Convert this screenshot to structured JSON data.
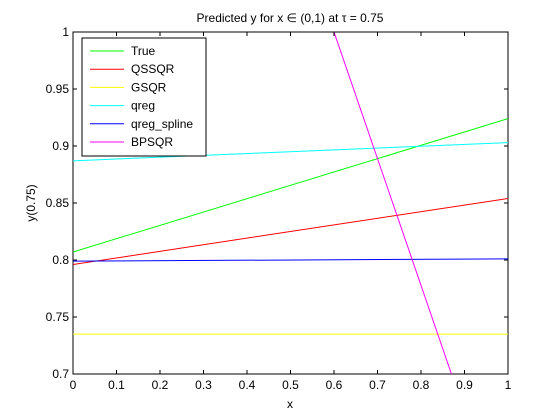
{
  "chart_data": {
    "type": "line",
    "title": "Predicted y for x ∈ (0,1) at τ = 0.75",
    "xlabel": "x",
    "ylabel": "y(0.75)",
    "xlim": [
      0,
      1
    ],
    "ylim": [
      0.7,
      1
    ],
    "xticks": [
      0,
      0.1,
      0.2,
      0.3,
      0.4,
      0.5,
      0.6,
      0.7,
      0.8,
      0.9,
      1
    ],
    "xtick_labels": [
      "0",
      "0.1",
      "0.2",
      "0.3",
      "0.4",
      "0.5",
      "0.6",
      "0.7",
      "0.8",
      "0.9",
      "1"
    ],
    "yticks": [
      0.7,
      0.75,
      0.8,
      0.85,
      0.9,
      0.95,
      1
    ],
    "ytick_labels": [
      "0.7",
      "0.75",
      "0.8",
      "0.85",
      "0.9",
      "0.95",
      "1"
    ],
    "grid": false,
    "legend_position": "top-left",
    "series": [
      {
        "name": "True",
        "color": "#00ff00",
        "x": [
          0,
          1
        ],
        "y": [
          0.807,
          0.924
        ]
      },
      {
        "name": "QSSQR",
        "color": "#ff0000",
        "x": [
          0,
          1
        ],
        "y": [
          0.796,
          0.854
        ]
      },
      {
        "name": "GSQR",
        "color": "#ffff00",
        "x": [
          0,
          1
        ],
        "y": [
          0.735,
          0.735
        ]
      },
      {
        "name": "qreg",
        "color": "#00ffff",
        "x": [
          0,
          1
        ],
        "y": [
          0.887,
          0.903
        ]
      },
      {
        "name": "qreg_spline",
        "color": "#0000ff",
        "x": [
          0,
          1
        ],
        "y": [
          0.799,
          0.801
        ]
      },
      {
        "name": "BPSQR",
        "color": "#ff00ff",
        "x": [
          0.6,
          0.87
        ],
        "y": [
          1.0,
          0.7
        ]
      }
    ]
  }
}
